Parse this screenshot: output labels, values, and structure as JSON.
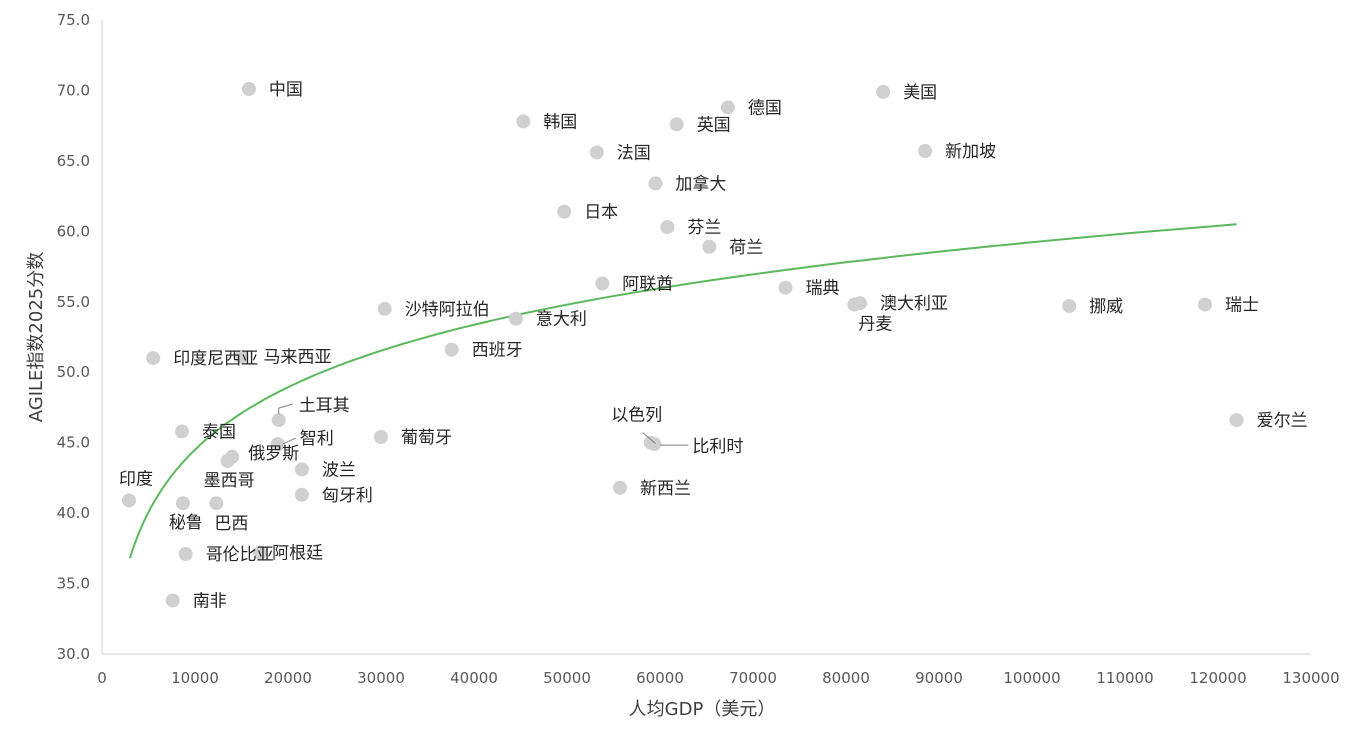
{
  "chart_data": {
    "type": "scatter",
    "xlabel": "人均GDP（美元）",
    "ylabel": "AGILE指数2025分数",
    "xlim": [
      0,
      130000
    ],
    "ylim": [
      30,
      75
    ],
    "x_ticks": [
      "0",
      "10000",
      "20000",
      "30000",
      "40000",
      "50000",
      "60000",
      "70000",
      "80000",
      "90000",
      "100000",
      "110000",
      "120000",
      "130000"
    ],
    "y_ticks": [
      "30.0",
      "35.0",
      "40.0",
      "45.0",
      "50.0",
      "55.0",
      "60.0",
      "65.0",
      "70.0",
      "75.0"
    ],
    "grid": false,
    "colors": {
      "points": "#d0d0d0",
      "trendline": "#5cb85c"
    },
    "trendline": {
      "type": "logarithmic",
      "x_start": 3000,
      "x_end": 122000,
      "y_start": 36.8,
      "y_end": 60.5
    },
    "points": [
      {
        "label": "中国",
        "x": 15800,
        "y": 70.1
      },
      {
        "label": "美国",
        "x": 84000,
        "y": 69.9
      },
      {
        "label": "德国",
        "x": 67300,
        "y": 68.8
      },
      {
        "label": "韩国",
        "x": 45300,
        "y": 67.8
      },
      {
        "label": "英国",
        "x": 61800,
        "y": 67.6
      },
      {
        "label": "法国",
        "x": 53200,
        "y": 65.6
      },
      {
        "label": "新加坡",
        "x": 88500,
        "y": 65.7
      },
      {
        "label": "加拿大",
        "x": 59500,
        "y": 63.4
      },
      {
        "label": "日本",
        "x": 49700,
        "y": 61.4
      },
      {
        "label": "芬兰",
        "x": 60800,
        "y": 60.3
      },
      {
        "label": "荷兰",
        "x": 65300,
        "y": 58.9
      },
      {
        "label": "阿联酋",
        "x": 53800,
        "y": 56.3
      },
      {
        "label": "瑞典",
        "x": 73500,
        "y": 56.0
      },
      {
        "label": "澳大利亚",
        "x": 81500,
        "y": 54.9
      },
      {
        "label": "丹麦",
        "x": 80900,
        "y": 54.8
      },
      {
        "label": "挪威",
        "x": 104000,
        "y": 54.7
      },
      {
        "label": "瑞士",
        "x": 118600,
        "y": 54.8
      },
      {
        "label": "沙特阿拉伯",
        "x": 30400,
        "y": 54.5
      },
      {
        "label": "意大利",
        "x": 44500,
        "y": 53.8
      },
      {
        "label": "西班牙",
        "x": 37600,
        "y": 51.6
      },
      {
        "label": "印度尼西亚",
        "x": 5500,
        "y": 51.0
      },
      {
        "label": "马来西亚",
        "x": 15000,
        "y": 51.1
      },
      {
        "label": "土耳其",
        "x": 19000,
        "y": 46.6
      },
      {
        "label": "泰国",
        "x": 8600,
        "y": 45.8
      },
      {
        "label": "智利",
        "x": 18900,
        "y": 44.9
      },
      {
        "label": "葡萄牙",
        "x": 30000,
        "y": 45.4
      },
      {
        "label": "以色列",
        "x": 59000,
        "y": 45.0
      },
      {
        "label": "比利时",
        "x": 59400,
        "y": 44.9
      },
      {
        "label": "爱尔兰",
        "x": 122000,
        "y": 46.6
      },
      {
        "label": "俄罗斯",
        "x": 14000,
        "y": 44.0
      },
      {
        "label": "墨西哥",
        "x": 13500,
        "y": 43.7
      },
      {
        "label": "波兰",
        "x": 21500,
        "y": 43.1
      },
      {
        "label": "新西兰",
        "x": 55700,
        "y": 41.8
      },
      {
        "label": "匈牙利",
        "x": 21500,
        "y": 41.3
      },
      {
        "label": "印度",
        "x": 2900,
        "y": 40.9
      },
      {
        "label": "秘鲁",
        "x": 8700,
        "y": 40.7
      },
      {
        "label": "巴西",
        "x": 12300,
        "y": 40.7
      },
      {
        "label": "哥伦比亚",
        "x": 9000,
        "y": 37.1
      },
      {
        "label": "阿根廷",
        "x": 17000,
        "y": 37.2
      },
      {
        "label": "南非",
        "x": 7600,
        "y": 33.8
      }
    ]
  }
}
